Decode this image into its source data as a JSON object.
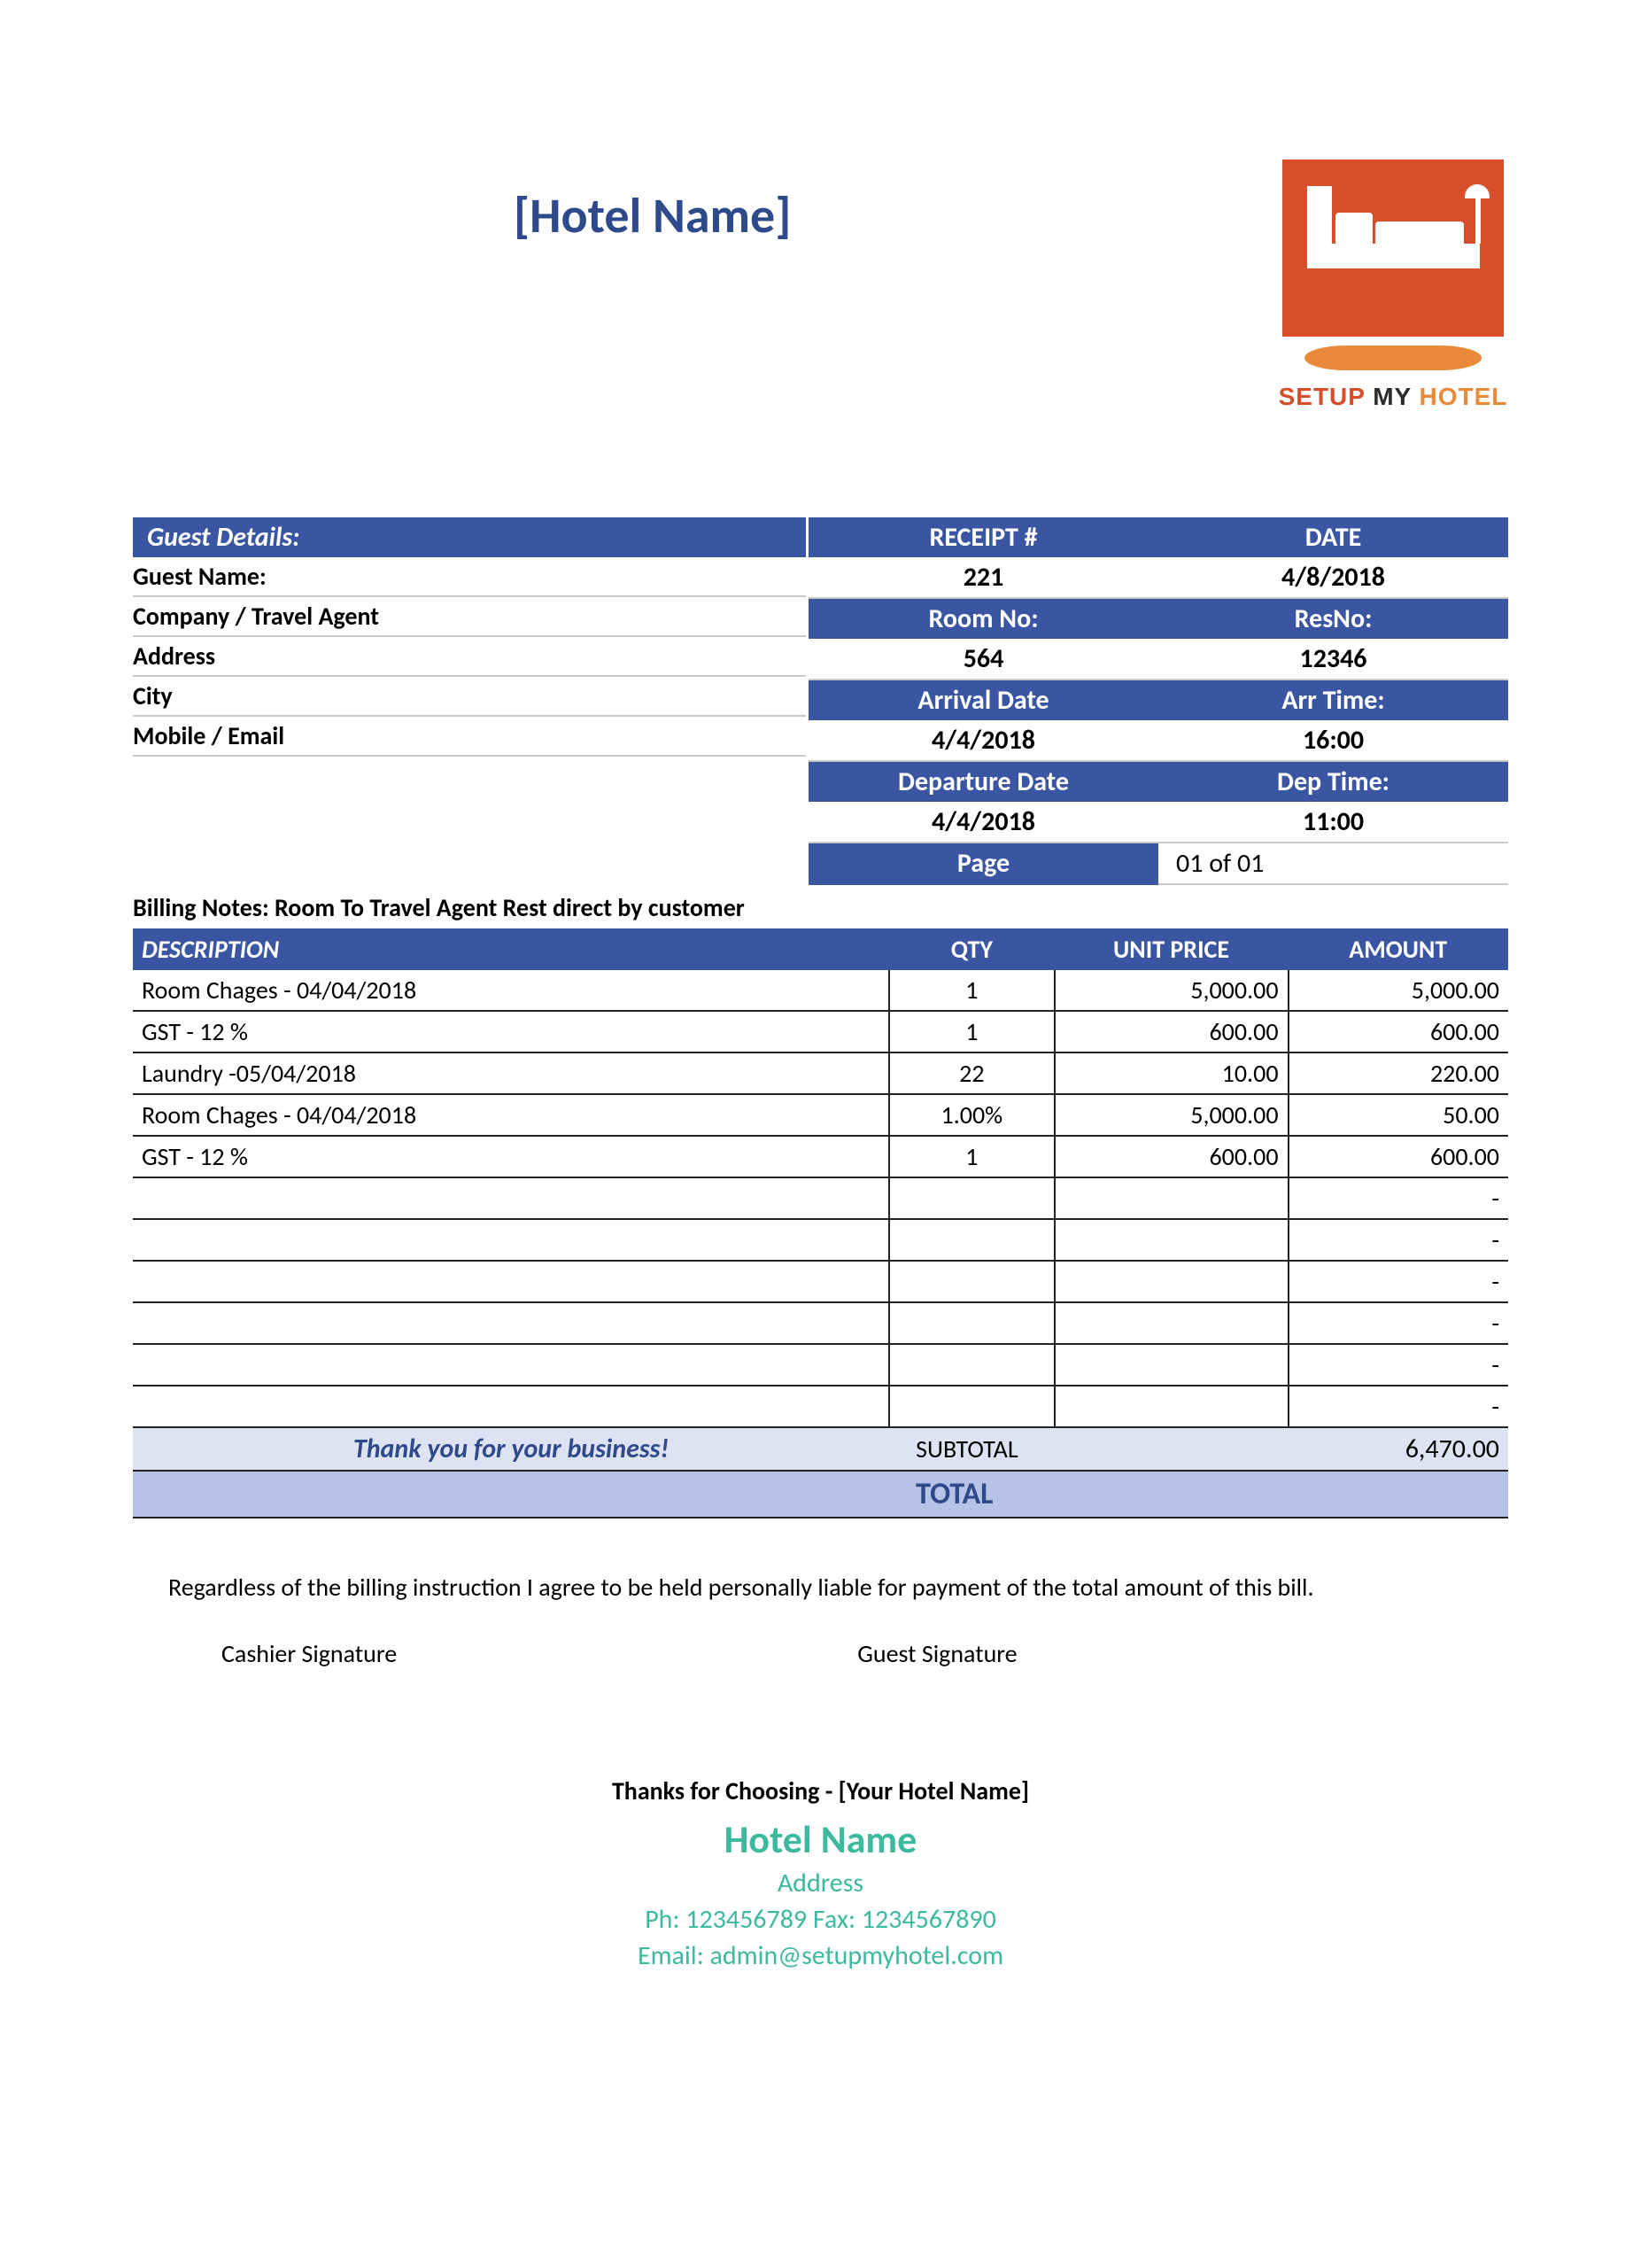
{
  "colors": {
    "header_bar": "#3a55a2",
    "header_text": "#ffffff",
    "title_text": "#2e4a8a",
    "subtotal_bg": "#dde3f2",
    "total_bg": "#b6c3e6",
    "footer_accent": "#3db9a0",
    "logo_bg": "#d84d2a",
    "logo_orange": "#e98a3a",
    "row_border": "#222222",
    "body_text": "#000000",
    "background": "#ffffff"
  },
  "title": "[Hotel Name]",
  "logo": {
    "text_setup": "SETUP",
    "text_my": "MY",
    "text_hotel": "HOTEL"
  },
  "guest": {
    "header": "Guest Details:",
    "fields": [
      "Guest Name:",
      "Company / Travel Agent",
      "Address",
      "City",
      "Mobile / Email"
    ]
  },
  "receipt": {
    "labels": {
      "receipt_no": "RECEIPT #",
      "date": "DATE",
      "room_no": "Room No:",
      "res_no": "ResNo:",
      "arrival_date": "Arrival Date",
      "arr_time": "Arr Time:",
      "departure_date": "Departure Date",
      "dep_time": "Dep Time:",
      "page": "Page"
    },
    "values": {
      "receipt_no": "221",
      "date": "4/8/2018",
      "room_no": "564",
      "res_no": "12346",
      "arrival_date": "4/4/2018",
      "arr_time": "16:00",
      "departure_date": "4/4/2018",
      "dep_time": "11:00",
      "page": "01 of 01"
    }
  },
  "billing_notes": "Billing Notes: Room To Travel Agent Rest direct by customer",
  "table": {
    "headers": {
      "description": "DESCRIPTION",
      "qty": "QTY",
      "unit_price": "UNIT PRICE",
      "amount": "AMOUNT"
    },
    "rows": [
      {
        "desc": "Room Chages - 04/04/2018",
        "qty": "1",
        "unit_price": "5,000.00",
        "amount": "5,000.00"
      },
      {
        "desc": "GST - 12 %",
        "qty": "1",
        "unit_price": "600.00",
        "amount": "600.00"
      },
      {
        "desc": "Laundry -05/04/2018",
        "qty": "22",
        "unit_price": "10.00",
        "amount": "220.00"
      },
      {
        "desc": "Room Chages - 04/04/2018",
        "qty": "1.00%",
        "unit_price": "5,000.00",
        "amount": "50.00"
      },
      {
        "desc": "GST - 12 %",
        "qty": "1",
        "unit_price": "600.00",
        "amount": "600.00"
      },
      {
        "desc": "",
        "qty": "",
        "unit_price": "",
        "amount": "-"
      },
      {
        "desc": "",
        "qty": "",
        "unit_price": "",
        "amount": "-"
      },
      {
        "desc": "",
        "qty": "",
        "unit_price": "",
        "amount": "-"
      },
      {
        "desc": "",
        "qty": "",
        "unit_price": "",
        "amount": "-"
      },
      {
        "desc": "",
        "qty": "",
        "unit_price": "",
        "amount": "-"
      },
      {
        "desc": "",
        "qty": "",
        "unit_price": "",
        "amount": "-"
      }
    ],
    "thankyou": "Thank you for your business!",
    "subtotal_label": "SUBTOTAL",
    "subtotal_amount": "6,470.00",
    "total_label": "TOTAL"
  },
  "disclaimer": "Regardless of the billing instruction I agree to be held personally liable for payment of the total amount of this bill.",
  "signatures": {
    "cashier": "Cashier Signature",
    "guest": "Guest Signature"
  },
  "footer": {
    "thanks": "Thanks for Choosing - [Your Hotel Name]",
    "hotel_name": "Hotel Name",
    "address": "Address",
    "phone_fax": "Ph: 123456789 Fax: 1234567890",
    "email": "Email: admin@setupmyhotel.com"
  }
}
